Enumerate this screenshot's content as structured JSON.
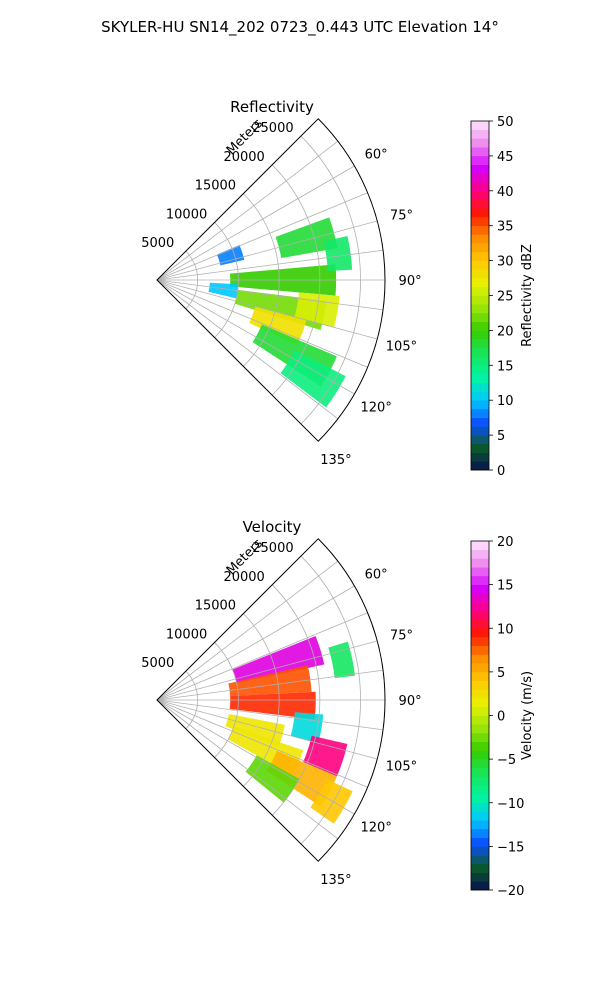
{
  "figure_title": "SKYLER-HU  SN14_202  0723_0.443 UTC Elevation 14°",
  "chart_data": [
    {
      "type": "polar-sector",
      "title": "Reflectivity",
      "radial_label": "Meters",
      "radial_ticks": [
        5000,
        10000,
        15000,
        20000,
        25000
      ],
      "rmax": 28000,
      "angle_ticks": [
        "60°",
        "75°",
        "90°",
        "105°",
        "120°",
        "135°"
      ],
      "angle_range_deg": [
        45,
        135
      ],
      "grid": true,
      "colorbar": {
        "label": "Reflectivity dBZ",
        "ticks": [
          "0",
          "5",
          "10",
          "15",
          "20",
          "25",
          "30",
          "35",
          "40",
          "45",
          "50"
        ],
        "vmin": 0,
        "vmax": 50,
        "stops": [
          "#08124d",
          "#0a5c2c",
          "#0a4dff",
          "#00c8ff",
          "#00f5a0",
          "#18e55a",
          "#35cc00",
          "#9de60a",
          "#e8f000",
          "#ffc800",
          "#ff8a00",
          "#ff1a00",
          "#ff0080",
          "#d400ff",
          "#ee88ee",
          "#ffe6ff"
        ]
      },
      "echo_regions": [
        {
          "az_deg": 75.0,
          "range_m": [
            15500,
            22500
          ],
          "value": 18
        },
        {
          "az_deg": 90.0,
          "range_m": [
            9000,
            22000
          ],
          "value": 20
        },
        {
          "az_deg": 102.0,
          "range_m": [
            10000,
            21000
          ],
          "value": 22
        },
        {
          "az_deg": 110.0,
          "range_m": [
            12500,
            19000
          ],
          "value": 28
        },
        {
          "az_deg": 118.0,
          "range_m": [
            14000,
            24000
          ],
          "value": 18
        },
        {
          "az_deg": 122.0,
          "range_m": [
            19000,
            26000
          ],
          "value": 15
        },
        {
          "az_deg": 82.0,
          "range_m": [
            21000,
            24000
          ],
          "value": 16
        },
        {
          "az_deg": 100.0,
          "range_m": [
            17500,
            22500
          ],
          "value": 26
        },
        {
          "az_deg": 72.0,
          "range_m": [
            8000,
            11000
          ],
          "value": 8
        },
        {
          "az_deg": 98.0,
          "range_m": [
            6500,
            10000
          ],
          "value": 10
        }
      ]
    },
    {
      "type": "polar-sector",
      "title": "Velocity",
      "radial_label": "Meters",
      "radial_ticks": [
        5000,
        10000,
        15000,
        20000,
        25000
      ],
      "rmax": 28000,
      "angle_ticks": [
        "60°",
        "75°",
        "90°",
        "105°",
        "120°",
        "135°"
      ],
      "angle_range_deg": [
        45,
        135
      ],
      "grid": true,
      "colorbar": {
        "label": "Velocity (m/s)",
        "ticks": [
          "−20",
          "−15",
          "−10",
          "−5",
          "0",
          "5",
          "10",
          "15",
          "20"
        ],
        "vmin": -20,
        "vmax": 20,
        "stops": [
          "#08124d",
          "#0a5c2c",
          "#0a4dff",
          "#00c8ff",
          "#00f5a0",
          "#18e55a",
          "#35cc00",
          "#9de60a",
          "#e8f000",
          "#ffc800",
          "#ff8a00",
          "#ff1a00",
          "#ff0080",
          "#d400ff",
          "#ee88ee",
          "#ffe6ff"
        ]
      },
      "echo_regions": [
        {
          "az_deg": 73.0,
          "range_m": [
            10000,
            21000
          ],
          "value": 14
        },
        {
          "az_deg": 82.0,
          "range_m": [
            9000,
            19000
          ],
          "value": 8
        },
        {
          "az_deg": 92.0,
          "range_m": [
            9000,
            19500
          ],
          "value": 9
        },
        {
          "az_deg": 100.0,
          "range_m": [
            17000,
            20500
          ],
          "value": -11
        },
        {
          "az_deg": 106.0,
          "range_m": [
            9000,
            16000
          ],
          "value": 2
        },
        {
          "az_deg": 114.0,
          "range_m": [
            10000,
            19000
          ],
          "value": 2
        },
        {
          "az_deg": 108.0,
          "range_m": [
            19500,
            24000
          ],
          "value": 12
        },
        {
          "az_deg": 118.0,
          "range_m": [
            16000,
            24000
          ],
          "value": 5
        },
        {
          "az_deg": 124.0,
          "range_m": [
            14000,
            20000
          ],
          "value": -3
        },
        {
          "az_deg": 120.0,
          "range_m": [
            23000,
            26500
          ],
          "value": 4
        },
        {
          "az_deg": 78.0,
          "range_m": [
            22000,
            24500
          ],
          "value": -7
        }
      ]
    }
  ]
}
